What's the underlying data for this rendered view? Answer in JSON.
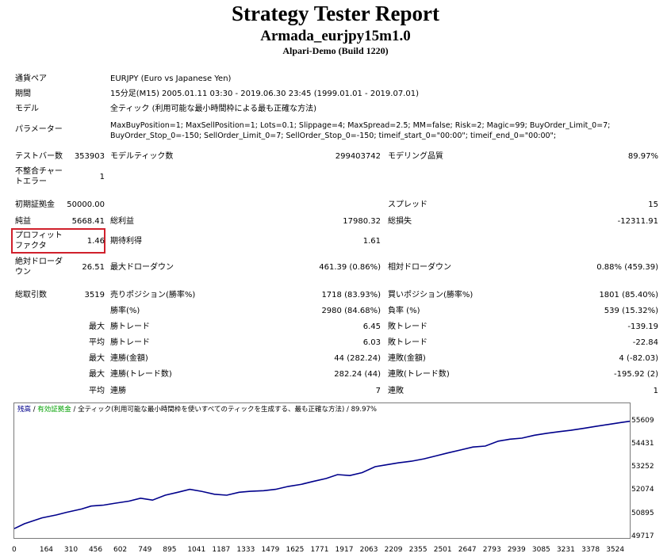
{
  "header": {
    "title": "Strategy Tester Report",
    "ea_name": "Armada_eurjpy15m1.0",
    "build": "Alpari-Demo (Build 1220)"
  },
  "info": {
    "symbol_label": "通貨ペア",
    "symbol_value": "EURJPY (Euro vs Japanese Yen)",
    "period_label": "期間",
    "period_value": "15分足(M15) 2005.01.11 03:30 - 2019.06.30 23:45 (1999.01.01 - 2019.07.01)",
    "model_label": "モデル",
    "model_value": "全ティック (利用可能な最小時間枠による最も正確な方法)",
    "params_label": "パラメーター",
    "params_line1": "MaxBuyPosition=1; MaxSellPosition=1; Lots=0.1; Slippage=4; MaxSpread=2.5; MM=false; Risk=2; Magic=99; BuyOrder_Limit_0=7;",
    "params_line2": "BuyOrder_Stop_0=-150; SellOrder_Limit_0=7; SellOrder_Stop_0=-150; timeif_start_0=\"00:00\"; timeif_end_0=\"00:00\";"
  },
  "stats": {
    "bars_label": "テストバー数",
    "bars_value": "353903",
    "ticks_label": "モデルティック数",
    "ticks_value": "299403742",
    "quality_label": "モデリング品質",
    "quality_value": "89.97%",
    "mismatch_label_1": "不整合チャー",
    "mismatch_label_2": "トエラー",
    "mismatch_value": "1",
    "deposit_label": "初期証拠金",
    "deposit_value": "50000.00",
    "spread_label": "スプレッド",
    "spread_value": "15",
    "net_label": "純益",
    "net_value": "5668.41",
    "gross_profit_label": "総利益",
    "gross_profit_value": "17980.32",
    "gross_loss_label": "総損失",
    "gross_loss_value": "-12311.91",
    "pf_label_1": "プロフィット",
    "pf_label_2": "ファクタ",
    "pf_value": "1.46",
    "expected_label": "期待利得",
    "expected_value": "1.61",
    "abs_dd_label_1": "絶対ドローダ",
    "abs_dd_label_2": "ウン",
    "abs_dd_value": "26.51",
    "max_dd_label": "最大ドローダウン",
    "max_dd_value": "461.39 (0.86%)",
    "rel_dd_label": "相対ドローダウン",
    "rel_dd_value": "0.88% (459.39)",
    "trades_label": "総取引数",
    "trades_value": "3519",
    "short_label": "売りポジション(勝率%)",
    "short_value": "1718 (83.93%)",
    "long_label": "買いポジション(勝率%)",
    "long_value": "1801 (85.40%)",
    "win_label": "勝率(%)",
    "win_value": "2980 (84.68%)",
    "loss_label": "負率 (%)",
    "loss_value": "539 (15.32%)",
    "q_max": "最大",
    "q_avg": "平均",
    "max_win_label": "勝トレード",
    "max_win_value": "6.45",
    "max_loss_label": "敗トレード",
    "max_loss_value": "-139.19",
    "avg_win_label": "勝トレード",
    "avg_win_value": "6.03",
    "avg_loss_label": "敗トレード",
    "avg_loss_value": "-22.84",
    "cons_win_money_label": "連勝(金額)",
    "cons_win_money_value": "44 (282.24)",
    "cons_loss_money_label": "連敗(金額)",
    "cons_loss_money_value": "4 (-82.03)",
    "cons_win_count_label": "連勝(トレード数)",
    "cons_win_count_value": "282.24 (44)",
    "cons_loss_count_label": "連敗(トレード数)",
    "cons_loss_count_value": "-195.92 (2)",
    "avg_cons_win_label": "連勝",
    "avg_cons_win_value": "7",
    "avg_cons_loss_label": "連敗",
    "avg_cons_loss_value": "1"
  },
  "chart_legend": {
    "balance": "残高",
    "sep1": " / ",
    "equity": "有効証拠金",
    "sep2": " / ",
    "model": "全ティック(利用可能な最小時間枠を使いすべてのティックを生成する、最も正確な方法)",
    "sep3": " / ",
    "quality": "89.97%"
  },
  "chart_data": {
    "type": "line",
    "x_ticks": [
      "0",
      "164",
      "310",
      "456",
      "602",
      "749",
      "895",
      "1041",
      "1187",
      "1333",
      "1479",
      "1625",
      "1771",
      "1917",
      "2063",
      "2209",
      "2355",
      "2501",
      "2647",
      "2793",
      "2939",
      "3085",
      "3231",
      "3378",
      "3524"
    ],
    "y_ticks": [
      "55609",
      "54431",
      "53252",
      "52074",
      "50895",
      "49717"
    ],
    "ylim": [
      49717,
      56000
    ],
    "xlim": [
      0,
      3650
    ],
    "series": [
      {
        "color": "#00008b",
        "x": [
          0,
          60,
          164,
          250,
          310,
          400,
          456,
          530,
          602,
          680,
          749,
          820,
          895,
          970,
          1041,
          1110,
          1187,
          1260,
          1333,
          1400,
          1479,
          1550,
          1625,
          1700,
          1771,
          1850,
          1917,
          1990,
          2063,
          2140,
          2209,
          2280,
          2355,
          2430,
          2501,
          2570,
          2647,
          2720,
          2793,
          2870,
          2939,
          3010,
          3085,
          3160,
          3231,
          3300,
          3378,
          3450,
          3524,
          3600,
          3650
        ],
        "y": [
          50150,
          50400,
          50700,
          50850,
          50980,
          51150,
          51300,
          51350,
          51450,
          51550,
          51700,
          51600,
          51850,
          52000,
          52150,
          52050,
          51900,
          51850,
          52000,
          52050,
          52080,
          52150,
          52300,
          52400,
          52550,
          52700,
          52900,
          52850,
          53000,
          53300,
          53400,
          53500,
          53580,
          53700,
          53850,
          54000,
          54150,
          54300,
          54350,
          54600,
          54700,
          54750,
          54900,
          55000,
          55080,
          55150,
          55250,
          55350,
          55450,
          55550,
          55609
        ]
      }
    ]
  }
}
